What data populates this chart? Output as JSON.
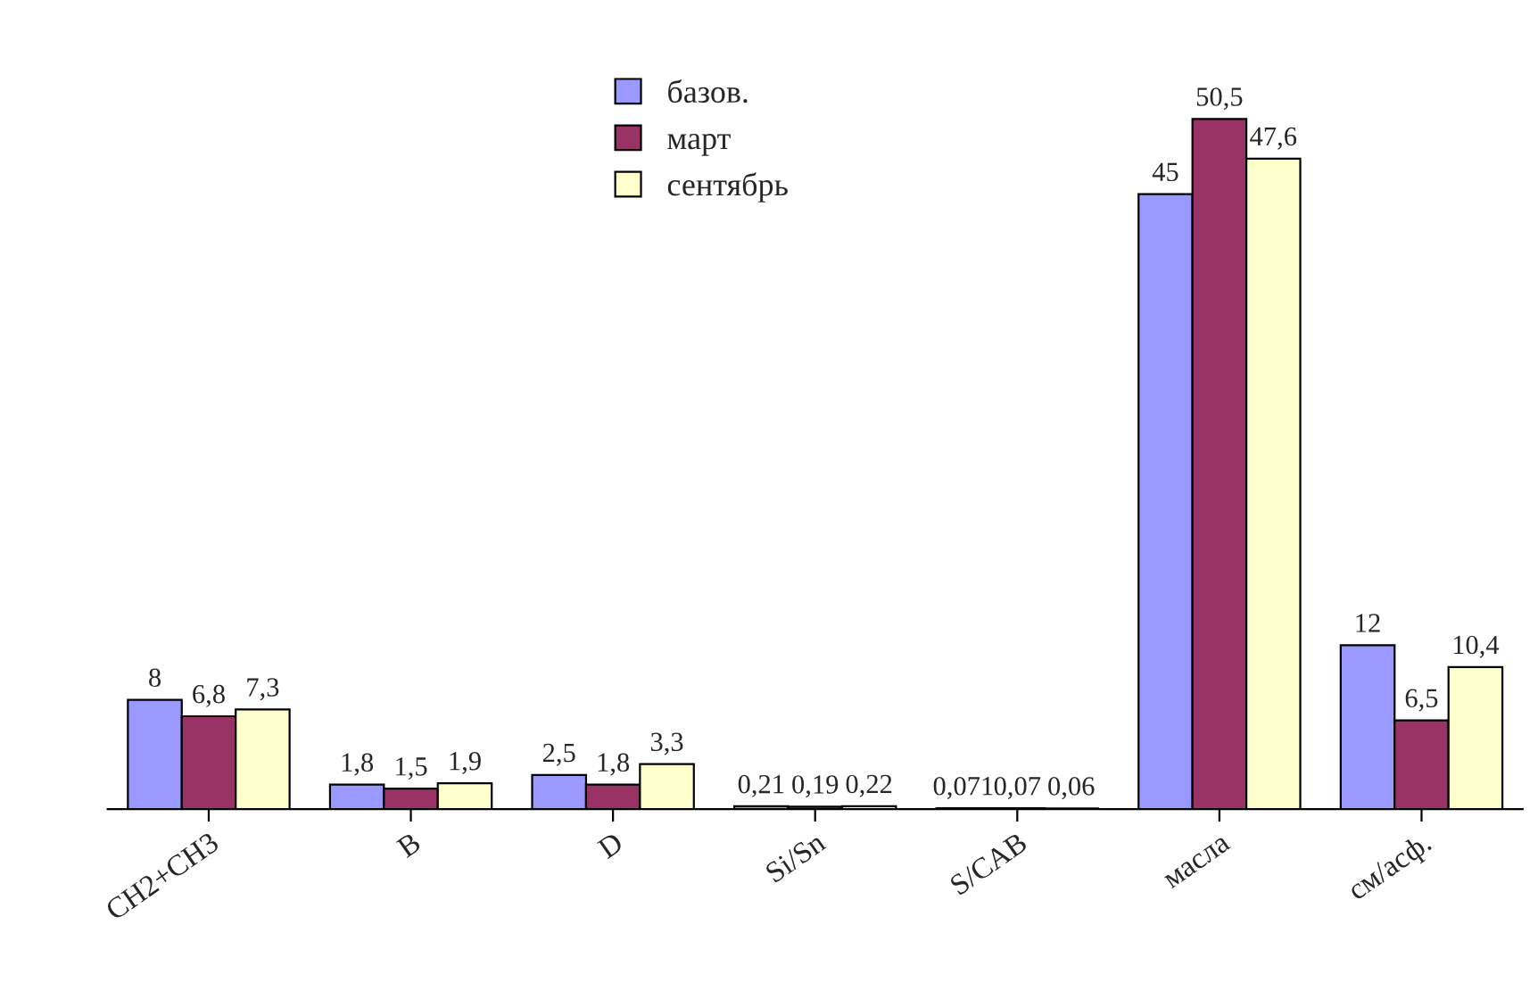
{
  "chart_data": {
    "type": "bar",
    "categories": [
      "CH2+CH3",
      "B",
      "D",
      "Si/Sn",
      "S/CAB",
      "масла",
      "см/асф."
    ],
    "series": [
      {
        "name": "базов.",
        "color": "#9999ff",
        "values": [
          8,
          1.8,
          2.5,
          0.21,
          0.071,
          45,
          12
        ],
        "value_labels": [
          "8",
          "1,8",
          "2,5",
          "0,21",
          "0,071",
          "45",
          "12"
        ]
      },
      {
        "name": "март",
        "color": "#993366",
        "values": [
          6.8,
          1.5,
          1.8,
          0.19,
          0.07,
          50.5,
          6.5
        ],
        "value_labels": [
          "6,8",
          "1,5",
          "1,8",
          "0,19",
          "0,07",
          "50,5",
          "6,5"
        ]
      },
      {
        "name": "сентябрь",
        "color": "#ffffcc",
        "values": [
          7.3,
          1.9,
          3.3,
          0.22,
          0.06,
          47.6,
          10.4
        ],
        "value_labels": [
          "7,3",
          "1,9",
          "3,3",
          "0,22",
          "0,06",
          "47,6",
          "10,4"
        ]
      }
    ],
    "legend": "top",
    "grid": false
  }
}
